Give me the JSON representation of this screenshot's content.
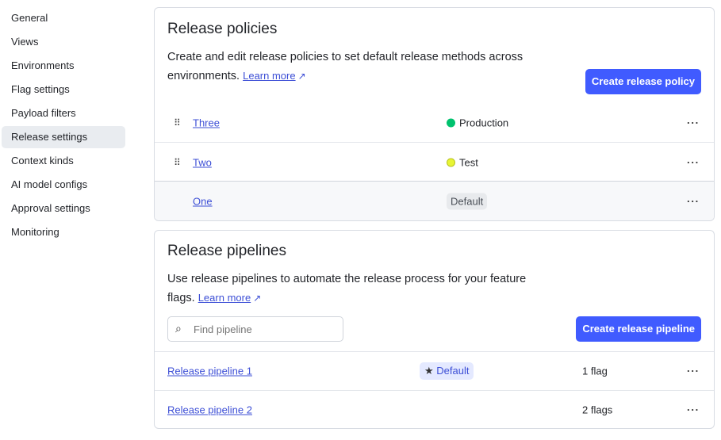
{
  "sidebar": {
    "items": [
      {
        "label": "General"
      },
      {
        "label": "Views"
      },
      {
        "label": "Environments"
      },
      {
        "label": "Flag settings"
      },
      {
        "label": "Payload filters"
      },
      {
        "label": "Release settings",
        "active": true
      },
      {
        "label": "Context kinds"
      },
      {
        "label": "AI model configs"
      },
      {
        "label": "Approval settings"
      },
      {
        "label": "Monitoring"
      }
    ]
  },
  "policies": {
    "title": "Release policies",
    "description": "Create and edit release policies to set default release methods across environments.",
    "learn_more": "Learn more",
    "create_button": "Create release policy",
    "rows": [
      {
        "name": "Three",
        "env": "Production",
        "env_color": "#00c26e"
      },
      {
        "name": "Two",
        "env": "Test",
        "env_color": "#e8f534"
      },
      {
        "name": "One",
        "badge": "Default"
      }
    ],
    "more": "···"
  },
  "pipelines": {
    "title": "Release pipelines",
    "description": "Use release pipelines to automate the release process for your feature flags.",
    "learn_more": "Learn more",
    "search_placeholder": "Find pipeline",
    "create_button": "Create release pipeline",
    "rows": [
      {
        "name": "Release pipeline 1",
        "badge": "Default",
        "flags": "1 flag"
      },
      {
        "name": "Release pipeline 2",
        "flags": "2 flags"
      }
    ],
    "more": "···"
  }
}
